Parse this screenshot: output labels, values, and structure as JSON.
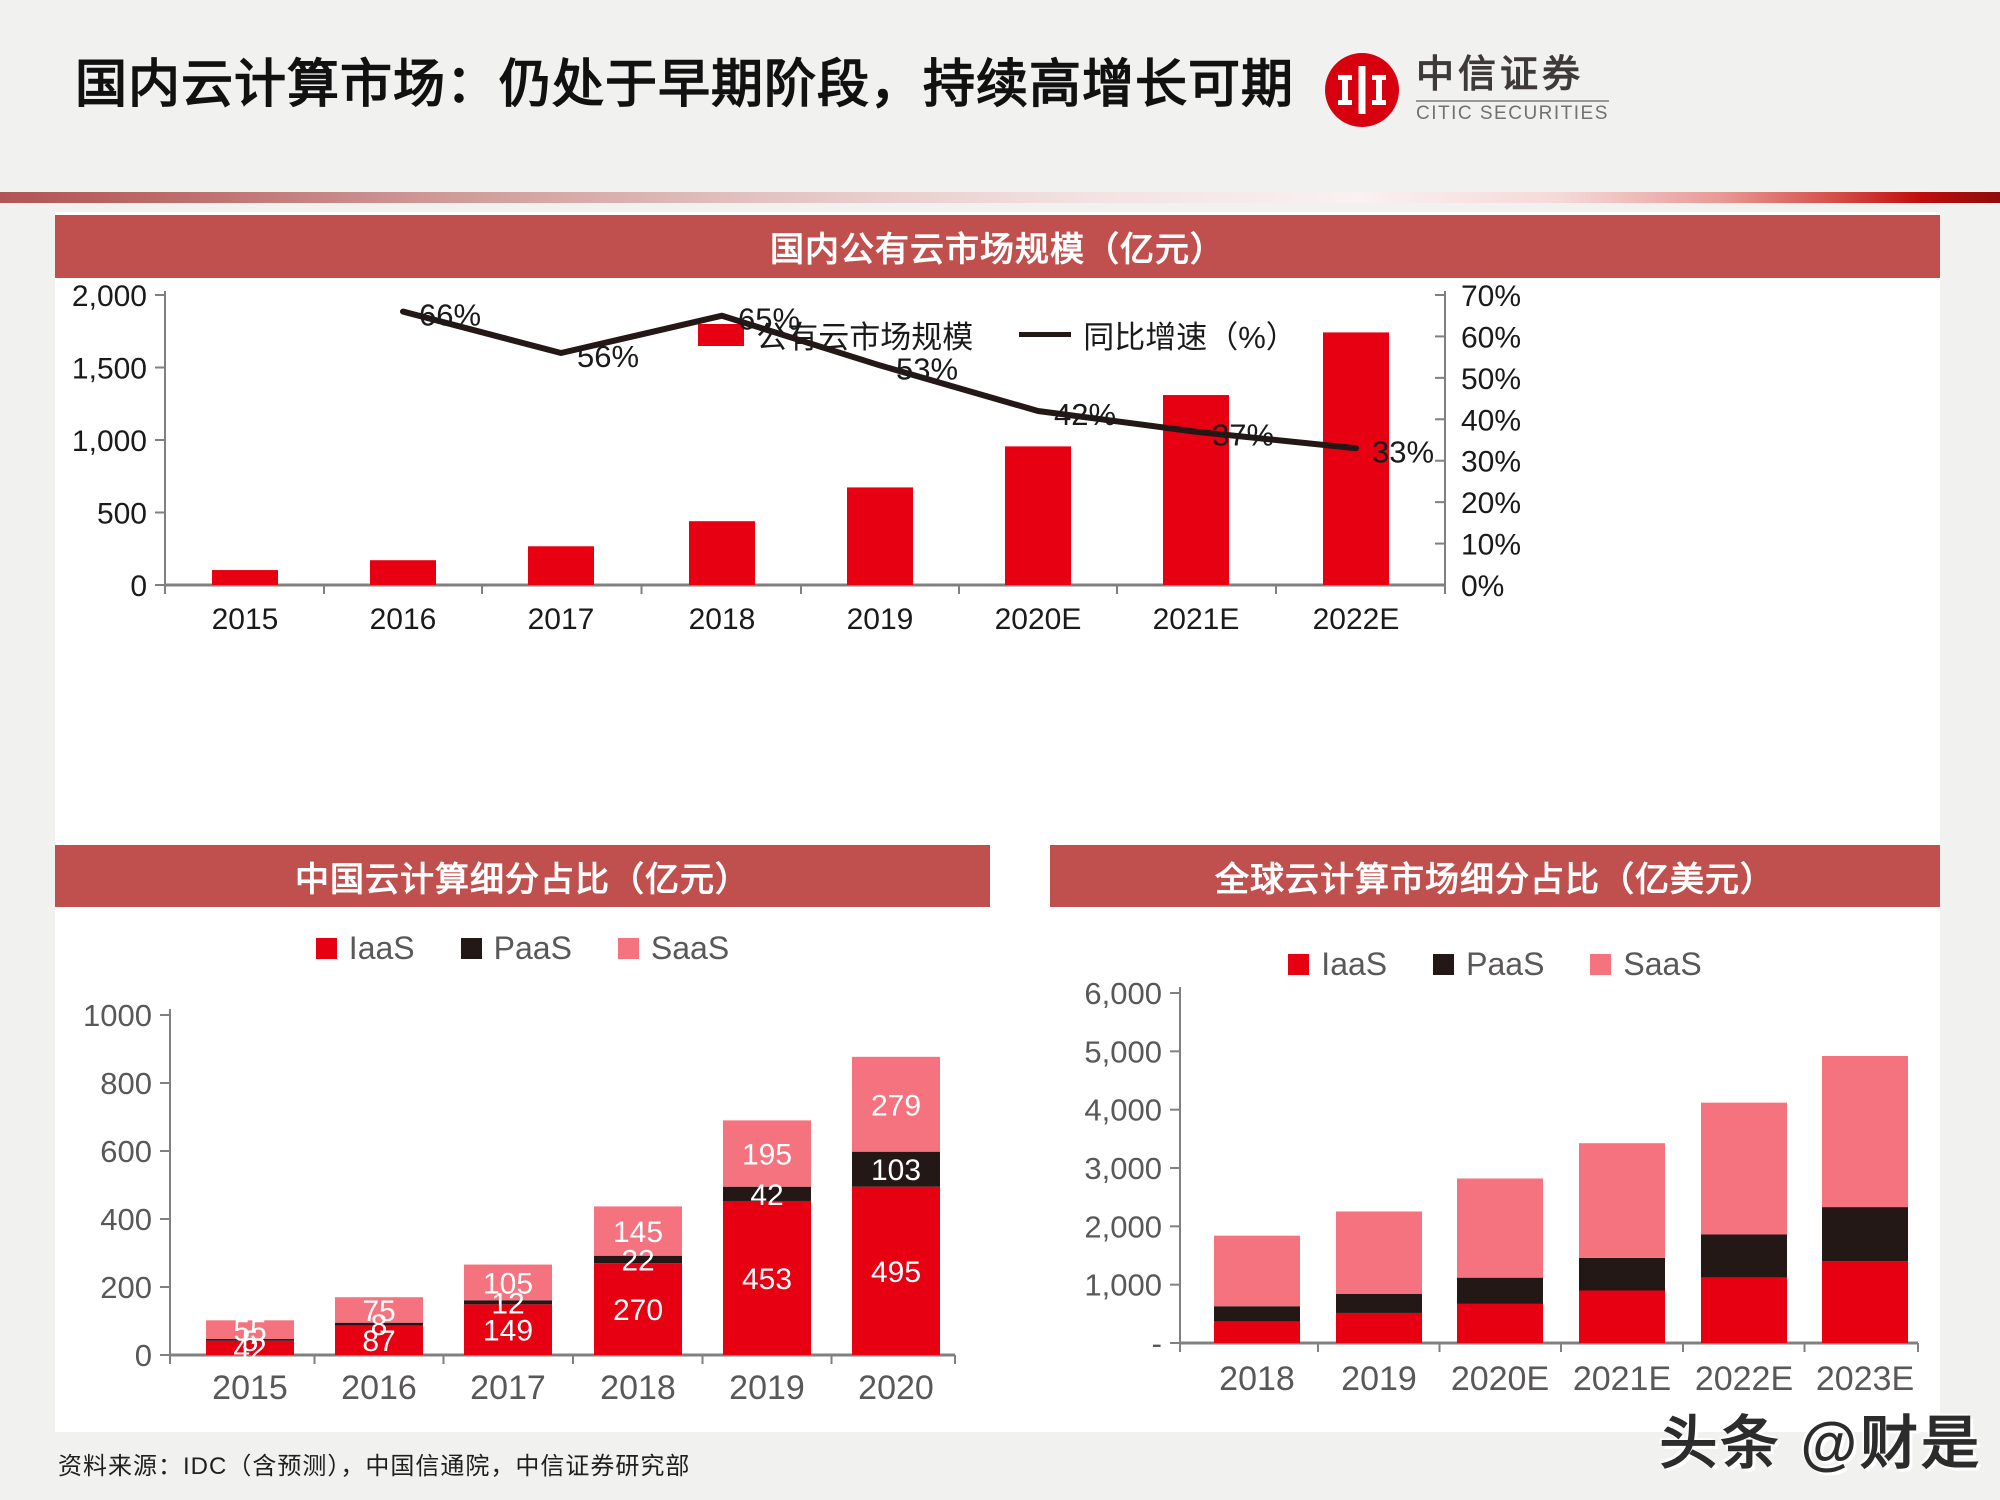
{
  "header": {
    "title": "国内云计算市场：仍处于早期阶段，持续高增长可期",
    "logo": {
      "zh": "中信证券",
      "en": "CITIC SECURITIES"
    }
  },
  "footer": {
    "source": "资料来源：IDC（含预测），中国信通院，中信证券研究部",
    "watermark": "头条 @财是"
  },
  "colors": {
    "red": "#E60012",
    "dark": "#231815",
    "pink": "#F5737F",
    "band": "#C0504D",
    "axis": "#808080",
    "tick_dark": "#1A1A1A",
    "tick_gray": "#595757"
  },
  "chart_data": [
    {
      "id": "public_cloud",
      "type": "bar",
      "title": "国内公有云市场规模（亿元）",
      "categories": [
        "2015",
        "2016",
        "2017",
        "2018",
        "2019",
        "2020E",
        "2021E",
        "2022E"
      ],
      "series": [
        {
          "name": "公有云市场规模",
          "type": "bar",
          "axis": "left",
          "color_key": "red",
          "values": [
            103,
            171,
            267,
            440,
            673,
            956,
            1310,
            1742
          ]
        },
        {
          "name": "同比增速（%）",
          "type": "line",
          "axis": "right",
          "color_key": "dark",
          "values": [
            null,
            66,
            56,
            65,
            53,
            42,
            37,
            33
          ],
          "point_labels": [
            "",
            "66%",
            "56%",
            "65%",
            "53%",
            "42%",
            "37%",
            "33%"
          ]
        }
      ],
      "left_axis": {
        "max": 2000,
        "tick_values": [
          0,
          500,
          1000,
          1500,
          2000
        ],
        "tick_labels": [
          "0",
          "500",
          "1,000",
          "1,500",
          "2,000"
        ]
      },
      "right_axis": {
        "max": 70,
        "tick_values": [
          0,
          10,
          20,
          30,
          40,
          50,
          60,
          70
        ],
        "tick_labels": [
          "0%",
          "10%",
          "20%",
          "30%",
          "40%",
          "50%",
          "60%",
          "70%"
        ]
      },
      "legend_position": "top"
    },
    {
      "id": "china_breakdown",
      "type": "bar",
      "title": "中国云计算细分占比（亿元）",
      "categories": [
        "2015",
        "2016",
        "2017",
        "2018",
        "2019",
        "2020"
      ],
      "series": [
        {
          "name": "IaaS",
          "color_key": "red",
          "values": [
            42,
            87,
            149,
            270,
            453,
            495
          ]
        },
        {
          "name": "PaaS",
          "color_key": "dark",
          "values": [
            5,
            8,
            12,
            22,
            42,
            103
          ]
        },
        {
          "name": "SaaS",
          "color_key": "pink",
          "values": [
            55,
            75,
            105,
            145,
            195,
            279
          ]
        }
      ],
      "stacked": true,
      "show_segment_labels": true,
      "y_axis": {
        "max": 1000,
        "tick_values": [
          0,
          200,
          400,
          600,
          800,
          1000
        ],
        "tick_labels": [
          "0",
          "200",
          "400",
          "600",
          "800",
          "1000"
        ]
      },
      "legend_position": "top"
    },
    {
      "id": "global_breakdown",
      "type": "bar",
      "title": "全球云计算市场细分占比（亿美元）",
      "categories": [
        "2018",
        "2019",
        "2020E",
        "2021E",
        "2022E",
        "2023E"
      ],
      "series": [
        {
          "name": "IaaS",
          "color_key": "red",
          "values": [
            370,
            515,
            670,
            900,
            1120,
            1400
          ]
        },
        {
          "name": "PaaS",
          "color_key": "dark",
          "values": [
            260,
            325,
            450,
            560,
            740,
            930
          ]
        },
        {
          "name": "SaaS",
          "color_key": "pink",
          "values": [
            1210,
            1415,
            1700,
            1965,
            2260,
            2590
          ]
        }
      ],
      "stacked": true,
      "show_segment_labels": false,
      "y_axis": {
        "max": 6000,
        "tick_values": [
          0,
          1000,
          2000,
          3000,
          4000,
          5000,
          6000
        ],
        "tick_labels": [
          "-",
          "1,000",
          "2,000",
          "3,000",
          "4,000",
          "5,000",
          "6,000"
        ]
      },
      "legend_position": "top"
    }
  ]
}
